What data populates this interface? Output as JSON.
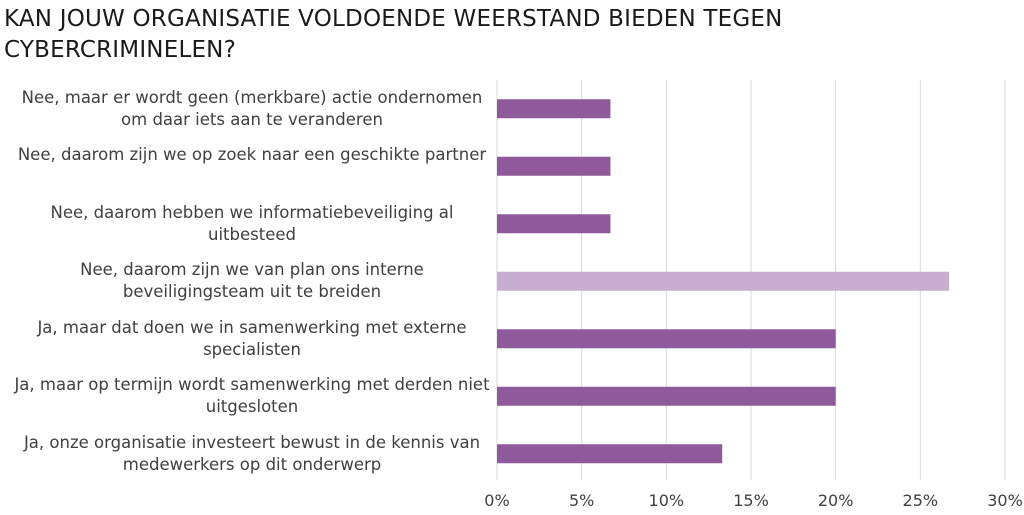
{
  "chart_data": {
    "type": "bar",
    "orientation": "horizontal",
    "title": "KAN JOUW ORGANISATIE VOLDOENDE WEERSTAND BIEDEN TEGEN CYBERCRIMINELEN?",
    "categories": [
      "Nee, maar er wordt geen (merkbare) actie ondernomen om daar iets aan te veranderen",
      "Nee, daarom zijn we op zoek naar een geschikte partner",
      "Nee, daarom hebben we informatiebeveiliging al uitbesteed",
      "Nee, daarom zijn we van plan ons interne beveiligingsteam uit te breiden",
      "Ja, maar dat doen we in samenwerking met externe specialisten",
      "Ja, maar op termijn wordt samenwerking met derden niet uitgesloten",
      "Ja, onze organisatie investeert bewust in de kennis van medewerkers op dit onderwerp"
    ],
    "values": [
      6.7,
      6.7,
      6.7,
      26.7,
      20.0,
      20.0,
      13.3
    ],
    "highlight_index": 3,
    "xlim": [
      0,
      30
    ],
    "xticks": [
      "0%",
      "5%",
      "10%",
      "15%",
      "20%",
      "25%",
      "30%"
    ],
    "grid": true,
    "legend": "none",
    "colors": {
      "bar": "#8e5a9b",
      "highlight": "#c7adcf",
      "grid": "#d9d9d9",
      "text": "#404040"
    }
  }
}
